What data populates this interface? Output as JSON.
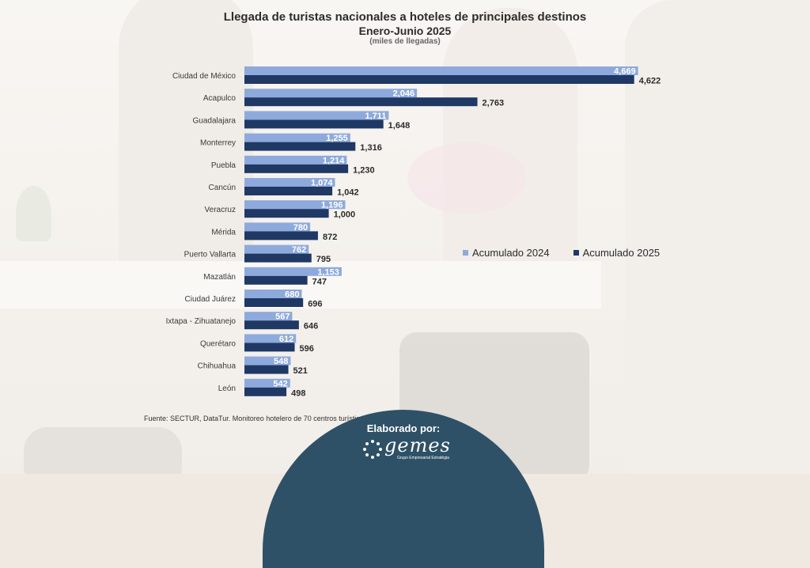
{
  "title": "Llegada de turistas nacionales a hoteles de principales destinos",
  "subtitle": "Enero-Junio 2025",
  "units": "(miles de llegadas)",
  "source": "Fuente: SECTUR, DataTur. Monitoreo hotelero de 70 centros turísticos.",
  "footer": {
    "label": "Elaborado por:",
    "logo_text": "gemes",
    "logo_tagline": "Grupo Empresarial Estratégia"
  },
  "colors": {
    "series_2024": "#8eaadc",
    "series_2025": "#1f3864"
  },
  "chart_data": {
    "type": "bar",
    "orientation": "horizontal",
    "categories": [
      "Ciudad de México",
      "Acapulco",
      "Guadalajara",
      "Monterrey",
      "Puebla",
      "Cancún",
      "Veracruz",
      "Mérida",
      "Puerto Vallarta",
      "Mazatlán",
      "Ciudad Juárez",
      "Ixtapa - Zihuatanejo",
      "Querétaro",
      "Chihuahua",
      "León"
    ],
    "series": [
      {
        "name": "Acumulado 2024",
        "values": [
          4669,
          2046,
          1711,
          1255,
          1214,
          1074,
          1196,
          780,
          762,
          1153,
          680,
          567,
          612,
          548,
          542
        ],
        "labels": [
          "4,669",
          "2,046",
          "1,711",
          "1,255",
          "1,214",
          "1,074",
          "1,196",
          "780",
          "762",
          "1,153",
          "680",
          "567",
          "612",
          "548",
          "542"
        ]
      },
      {
        "name": "Acumulado 2025",
        "values": [
          4622,
          2763,
          1648,
          1316,
          1230,
          1042,
          1000,
          872,
          795,
          747,
          696,
          646,
          596,
          521,
          498
        ],
        "labels": [
          "4,622",
          "2,763",
          "1,648",
          "1,316",
          "1,230",
          "1,042",
          "1,000",
          "872",
          "795",
          "747",
          "696",
          "646",
          "596",
          "521",
          "498"
        ]
      }
    ],
    "legend_position": "right",
    "grid": false
  }
}
